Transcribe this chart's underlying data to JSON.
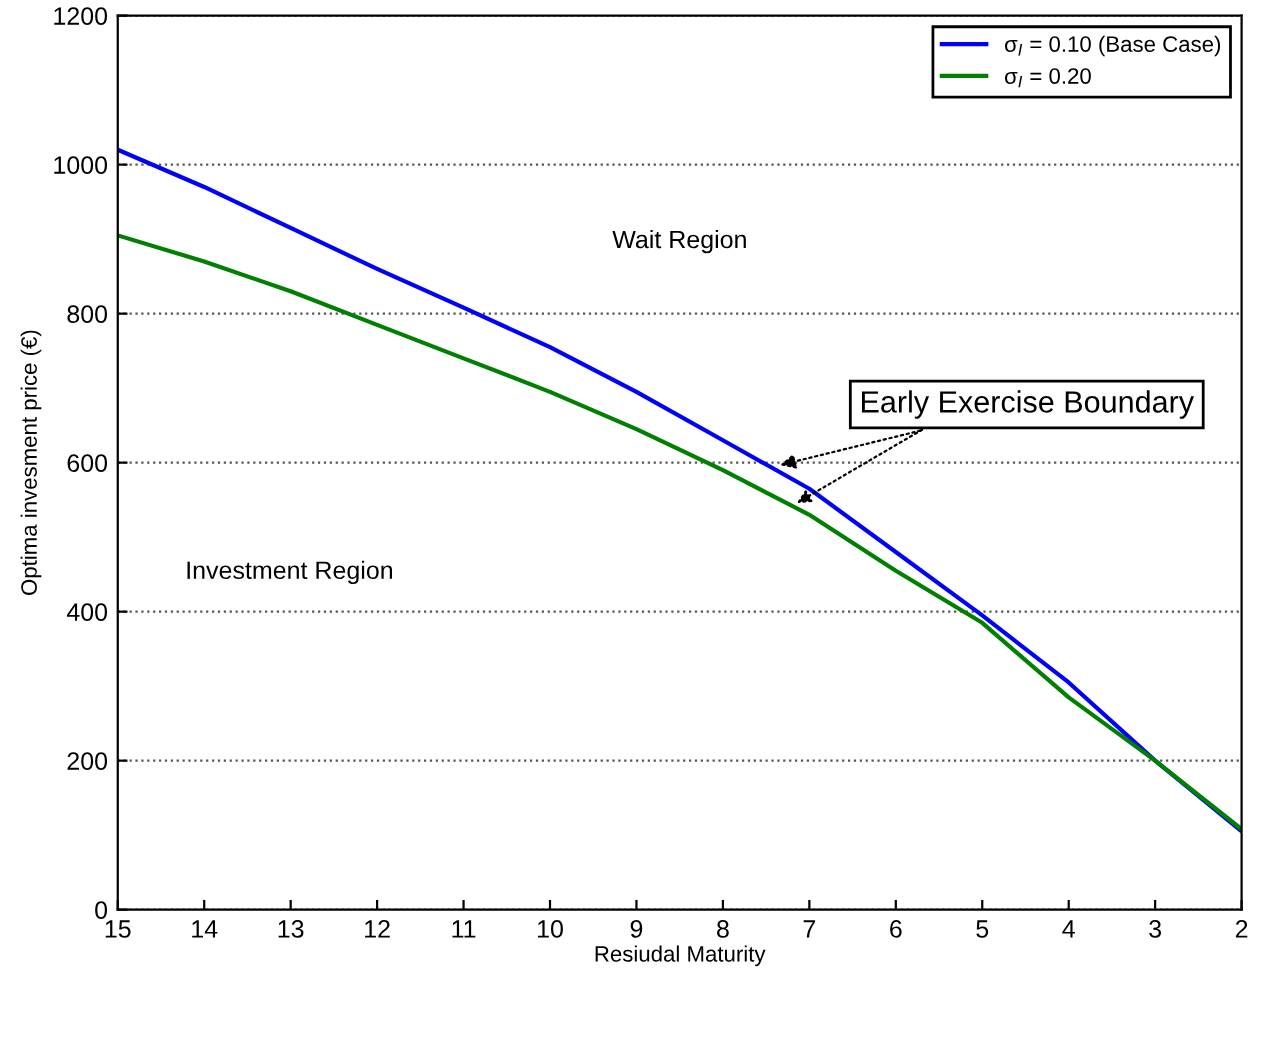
{
  "chart_data": {
    "type": "line",
    "xlabel": "Resiudal Maturity",
    "ylabel": "Optima invesment price (€)",
    "x": [
      15,
      14,
      13,
      12,
      11,
      10,
      9,
      8,
      7,
      6,
      5,
      4,
      3,
      2
    ],
    "series": [
      {
        "name": "σ$_{I}$ = 0.10 (Base Case)",
        "color": "#0000ff",
        "values": [
          1020,
          970,
          915,
          860,
          808,
          755,
          695,
          630,
          565,
          480,
          395,
          305,
          200,
          105
        ]
      },
      {
        "name": "σ$_{I}$ = 0.20",
        "color": "#008000",
        "values": [
          905,
          870,
          830,
          785,
          740,
          695,
          645,
          590,
          530,
          455,
          385,
          285,
          200,
          108
        ]
      }
    ],
    "xlim": [
      15,
      2
    ],
    "xticks": [
      15,
      14,
      13,
      12,
      11,
      10,
      9,
      8,
      7,
      6,
      5,
      4,
      3,
      2
    ],
    "ylim": [
      0,
      1200
    ],
    "yticks": [
      0,
      200,
      400,
      600,
      800,
      1000,
      1200
    ],
    "grid": "y",
    "legend": "top right",
    "marker": "none",
    "line_style": "solid",
    "annotations": [
      "Wait Region",
      "Investment Region",
      {
        "text": "Early Exercise Boundary",
        "x": 7.4,
        "y": 595
      }
    ]
  }
}
